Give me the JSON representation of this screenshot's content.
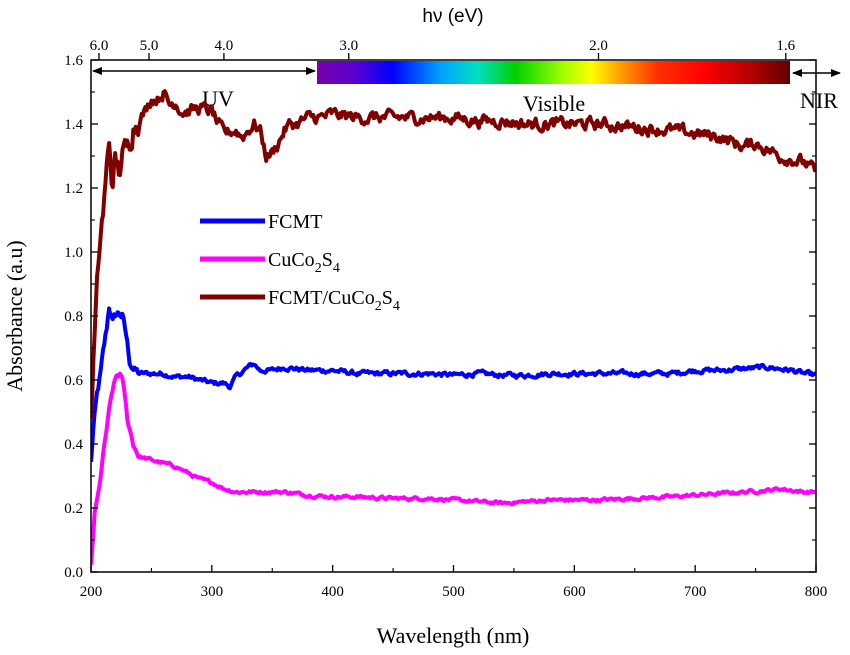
{
  "chart_data": {
    "type": "line",
    "title": "",
    "xlabel": "Wavelength (nm)",
    "ylabel": "Absorbance (a.u)",
    "top_axis_label": "hν (eV)",
    "xlim": [
      200,
      800
    ],
    "ylim": [
      0.0,
      1.6
    ],
    "x_ticks": [
      "200",
      "300",
      "400",
      "500",
      "600",
      "700",
      "800"
    ],
    "y_ticks": [
      "0.0",
      "0.2",
      "0.4",
      "0.6",
      "0.8",
      "1.0",
      "1.2",
      "1.4",
      "1.6"
    ],
    "top_ticks": [
      {
        "label": "6.0",
        "at_nm": 206.6
      },
      {
        "label": "5.0",
        "at_nm": 248
      },
      {
        "label": "4.0",
        "at_nm": 310
      },
      {
        "label": "3.0",
        "at_nm": 413.3
      },
      {
        "label": "2.0",
        "at_nm": 620
      },
      {
        "label": "1.6",
        "at_nm": 775
      }
    ],
    "regions": [
      {
        "label": "UV",
        "from_nm": 200,
        "to_nm": 390
      },
      {
        "label": "Visible",
        "from_nm": 390,
        "to_nm": 780
      },
      {
        "label": "NIR",
        "from_nm": 780,
        "to_nm": 800
      }
    ],
    "legend": [
      {
        "name": "FCMT",
        "base": "FCMT",
        "sub": ""
      },
      {
        "name": "CuCo2S4",
        "base": "CuCo",
        "sub": "2",
        "mid": "S",
        "sub2": "4"
      },
      {
        "name": "FCMT/CuCo2S4",
        "base": "FCMT/CuCo",
        "sub": "2",
        "mid": "S",
        "sub2": "4"
      }
    ],
    "legend_position": "upper-left-center",
    "series": [
      {
        "name": "FCMT",
        "color": "#0000ff",
        "noise": 0.012,
        "x": [
          200,
          202,
          205,
          208,
          210,
          213,
          215,
          218,
          220,
          223,
          226,
          229,
          232,
          236,
          240,
          250,
          260,
          270,
          280,
          290,
          300,
          310,
          315,
          320,
          330,
          335,
          340,
          350,
          360,
          380,
          400,
          420,
          450,
          480,
          500,
          520,
          540,
          560,
          580,
          600,
          620,
          650,
          680,
          700,
          720,
          740,
          760,
          780,
          790,
          800
        ],
        "y": [
          0.34,
          0.45,
          0.55,
          0.62,
          0.68,
          0.76,
          0.83,
          0.78,
          0.8,
          0.81,
          0.8,
          0.74,
          0.66,
          0.63,
          0.62,
          0.62,
          0.62,
          0.61,
          0.61,
          0.6,
          0.59,
          0.59,
          0.58,
          0.61,
          0.64,
          0.65,
          0.63,
          0.63,
          0.64,
          0.63,
          0.63,
          0.62,
          0.62,
          0.62,
          0.615,
          0.62,
          0.615,
          0.615,
          0.62,
          0.62,
          0.62,
          0.62,
          0.62,
          0.63,
          0.63,
          0.635,
          0.64,
          0.63,
          0.62,
          0.615
        ]
      },
      {
        "name": "CuCo2S4",
        "color": "#ff00ff",
        "noise": 0.008,
        "x": [
          200,
          203,
          206,
          209,
          212,
          215,
          218,
          221,
          224,
          227,
          230,
          235,
          240,
          250,
          260,
          270,
          280,
          290,
          300,
          310,
          320,
          340,
          360,
          380,
          400,
          420,
          450,
          480,
          500,
          520,
          540,
          560,
          580,
          600,
          620,
          650,
          680,
          700,
          720,
          740,
          760,
          770,
          780,
          790,
          800
        ],
        "y": [
          0.02,
          0.18,
          0.24,
          0.33,
          0.42,
          0.5,
          0.57,
          0.61,
          0.62,
          0.58,
          0.48,
          0.4,
          0.36,
          0.35,
          0.34,
          0.33,
          0.31,
          0.29,
          0.28,
          0.26,
          0.25,
          0.25,
          0.25,
          0.24,
          0.235,
          0.235,
          0.23,
          0.23,
          0.225,
          0.22,
          0.215,
          0.22,
          0.225,
          0.225,
          0.225,
          0.23,
          0.235,
          0.24,
          0.245,
          0.25,
          0.255,
          0.26,
          0.255,
          0.25,
          0.25
        ]
      },
      {
        "name": "FCMT/CuCo2S4",
        "color": "#800000",
        "noise": 0.03,
        "x": [
          200,
          202,
          204,
          206,
          208,
          210,
          212,
          215,
          218,
          220,
          223,
          226,
          230,
          235,
          240,
          245,
          250,
          255,
          260,
          265,
          270,
          275,
          280,
          290,
          300,
          305,
          310,
          320,
          325,
          330,
          335,
          340,
          345,
          350,
          355,
          360,
          365,
          370,
          380,
          390,
          400,
          420,
          450,
          480,
          500,
          520,
          540,
          560,
          580,
          600,
          620,
          650,
          680,
          700,
          720,
          740,
          750,
          760,
          770,
          780,
          790,
          800
        ],
        "y": [
          0.45,
          0.65,
          0.8,
          0.95,
          1.05,
          1.12,
          1.2,
          1.35,
          1.2,
          1.28,
          1.25,
          1.3,
          1.32,
          1.4,
          1.42,
          1.44,
          1.48,
          1.48,
          1.5,
          1.46,
          1.47,
          1.44,
          1.44,
          1.45,
          1.44,
          1.4,
          1.37,
          1.38,
          1.36,
          1.38,
          1.4,
          1.38,
          1.3,
          1.31,
          1.34,
          1.38,
          1.4,
          1.4,
          1.42,
          1.42,
          1.43,
          1.42,
          1.42,
          1.42,
          1.42,
          1.41,
          1.41,
          1.4,
          1.4,
          1.4,
          1.4,
          1.39,
          1.38,
          1.37,
          1.36,
          1.33,
          1.34,
          1.32,
          1.3,
          1.29,
          1.28,
          1.25
        ]
      }
    ]
  }
}
